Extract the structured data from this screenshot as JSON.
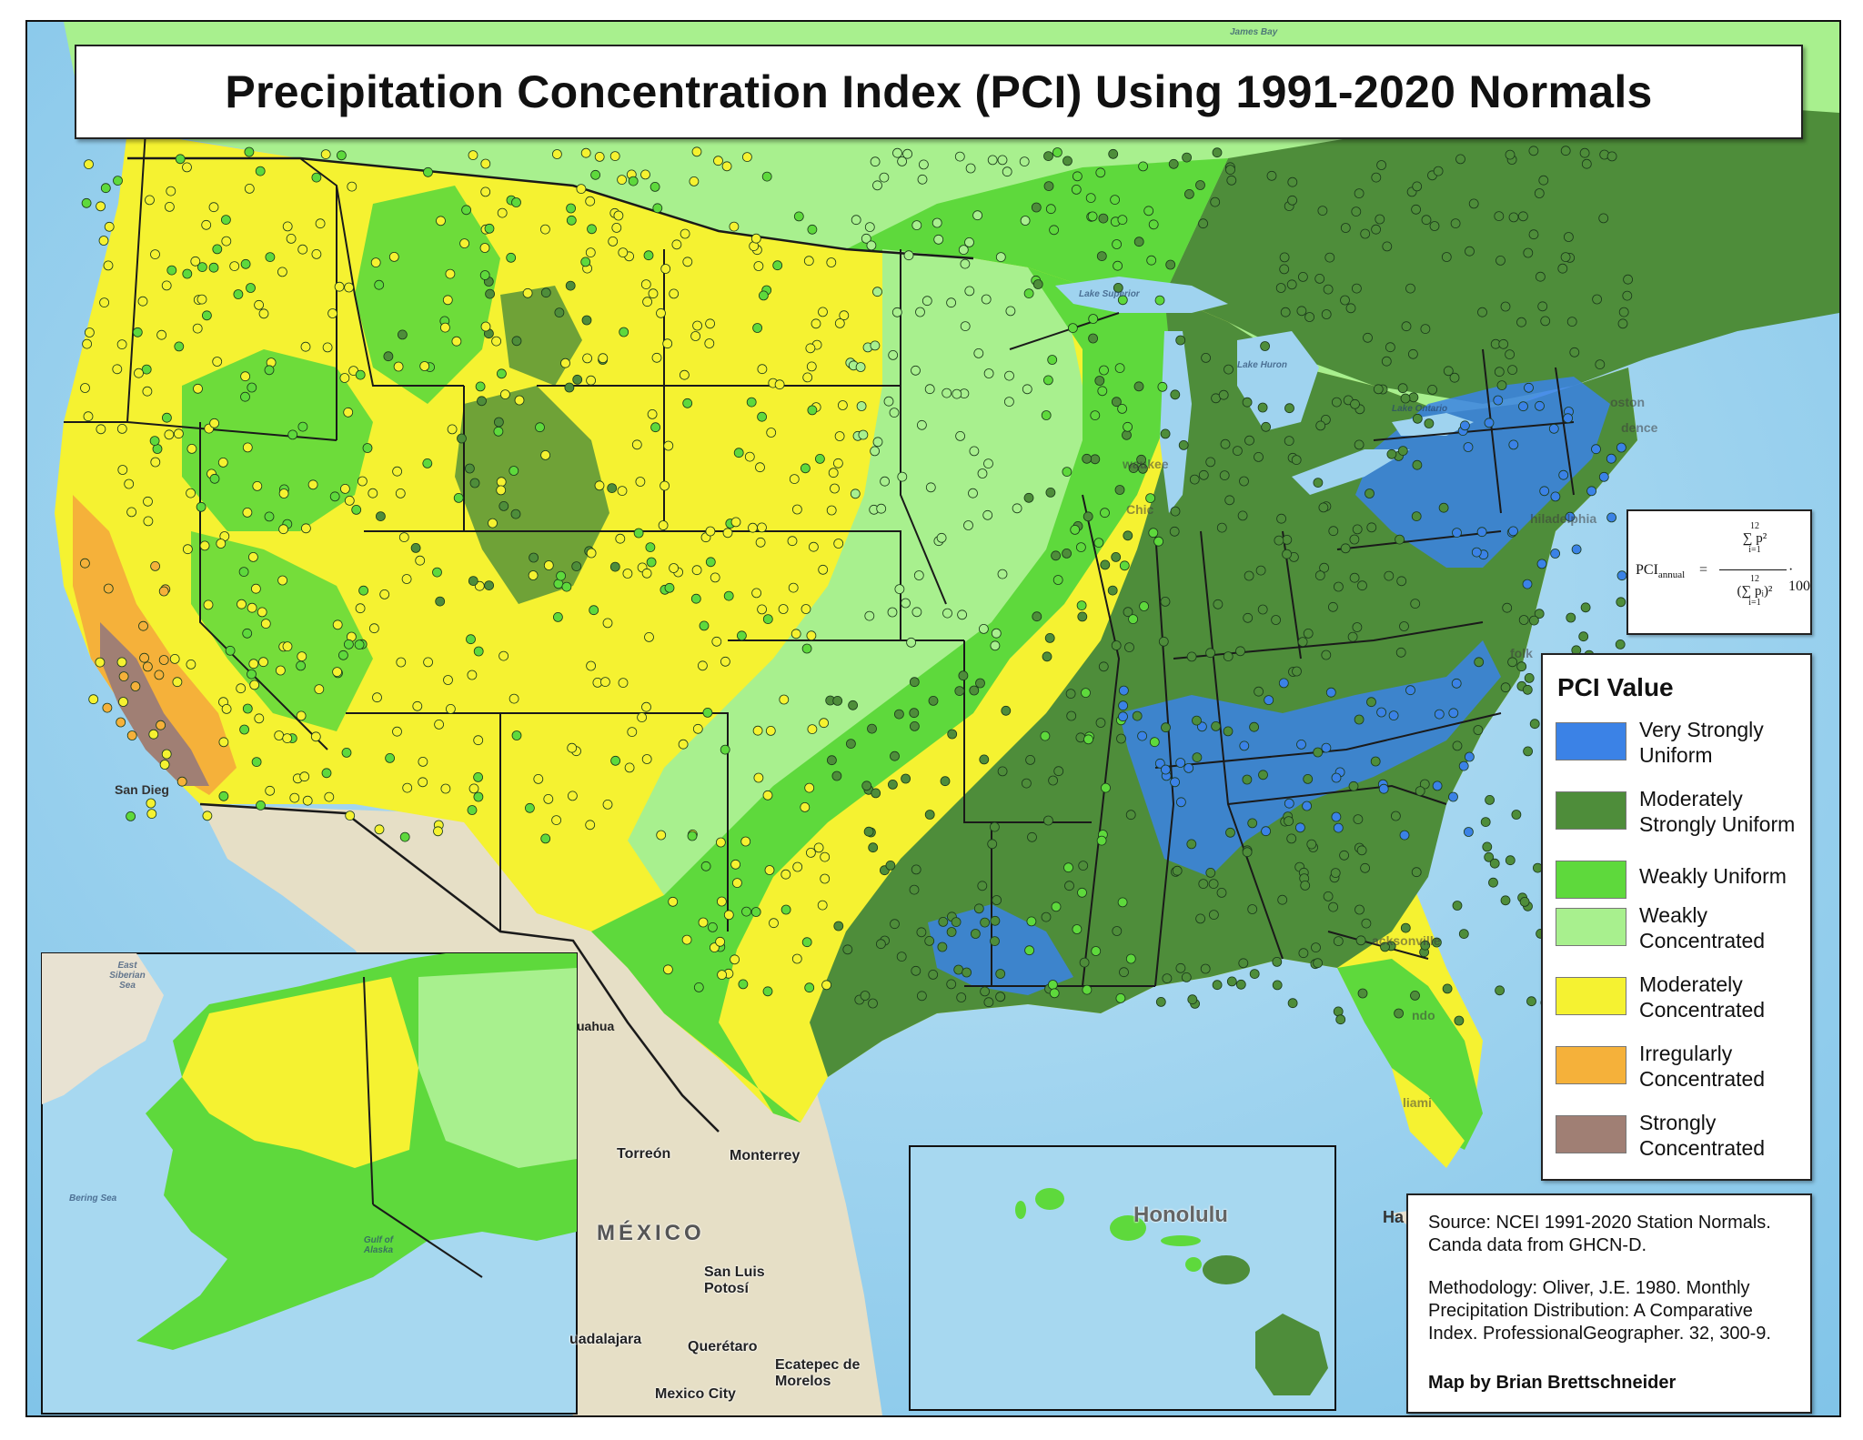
{
  "title": "Precipitation Concentration Index (PCI) Using 1991-2020 Normals",
  "formula": {
    "lhs": "PCI",
    "lhs_sub": "annual",
    "numerator": "∑ p²",
    "numerator_upper": "12",
    "numerator_lower": "i=1",
    "denominator": "(∑ pᵢ)²",
    "denominator_upper": "12",
    "denominator_lower": "i=1",
    "multiplier": "· 100"
  },
  "legend": {
    "title": "PCI Value",
    "items": [
      {
        "label": "Very Strongly Uniform",
        "color": "#3b82e6"
      },
      {
        "label": "Moderately Strongly Uniform",
        "color": "#4e8d3a"
      },
      {
        "label": "Weakly Uniform",
        "color": "#5ed93c"
      },
      {
        "label": "Weakly Concentrated",
        "color": "#a8f08e"
      },
      {
        "label": "Moderately Concentrated",
        "color": "#f5f231"
      },
      {
        "label": "Irregularly Concentrated",
        "color": "#f5b13a"
      },
      {
        "label": "Strongly Concentrated",
        "color": "#a07f74"
      }
    ]
  },
  "source": {
    "text": "Source: NCEI 1991-2020 Station Normals. Canda data from GHCN-D.",
    "methodology": "Methodology: Oliver, J.E. 1980. Monthly Precipitation Distribution: A Comparative Index. ProfessionalGeographer. 32, 300-9.",
    "credit": "Map by Brian Brettschneider"
  },
  "basemap_labels": {
    "torreon": "Torreón",
    "monterrey": "Monterrey",
    "mexico": "MÉXICO",
    "san_luis_potosi": "San Luis Potosí",
    "guadalajara": "uadalajara",
    "queretaro": "Querétaro",
    "ecatepec": "Ecatepec de Morelos",
    "mexico_city": "Mexico City",
    "honolulu": "Honolulu",
    "chihuahua": "uahua",
    "san_diego": "San Dieg",
    "jacksonville": "acksonville",
    "miami": "liami",
    "orlando": "ndo",
    "philadelphia": "hiladelphia",
    "boston": "oston",
    "providence": "dence",
    "norfolk": "folk",
    "chicago": "Chic",
    "milwaukee": "waukee",
    "lake_superior": "Lake Superior",
    "lake_huron": "Lake Huron",
    "lake_ontario": "Lake Ontario",
    "james_bay": "James Bay",
    "havana": "Ha",
    "bering_sea": "Bering Sea",
    "gulf_of_alaska": "Gulf of Alaska",
    "east_siberian_sea": "East Siberian Sea"
  },
  "colors": {
    "ocean": "#9fd3ef",
    "land_gray": "#e8e2d2",
    "mexico_land": "#e6dfc6"
  }
}
